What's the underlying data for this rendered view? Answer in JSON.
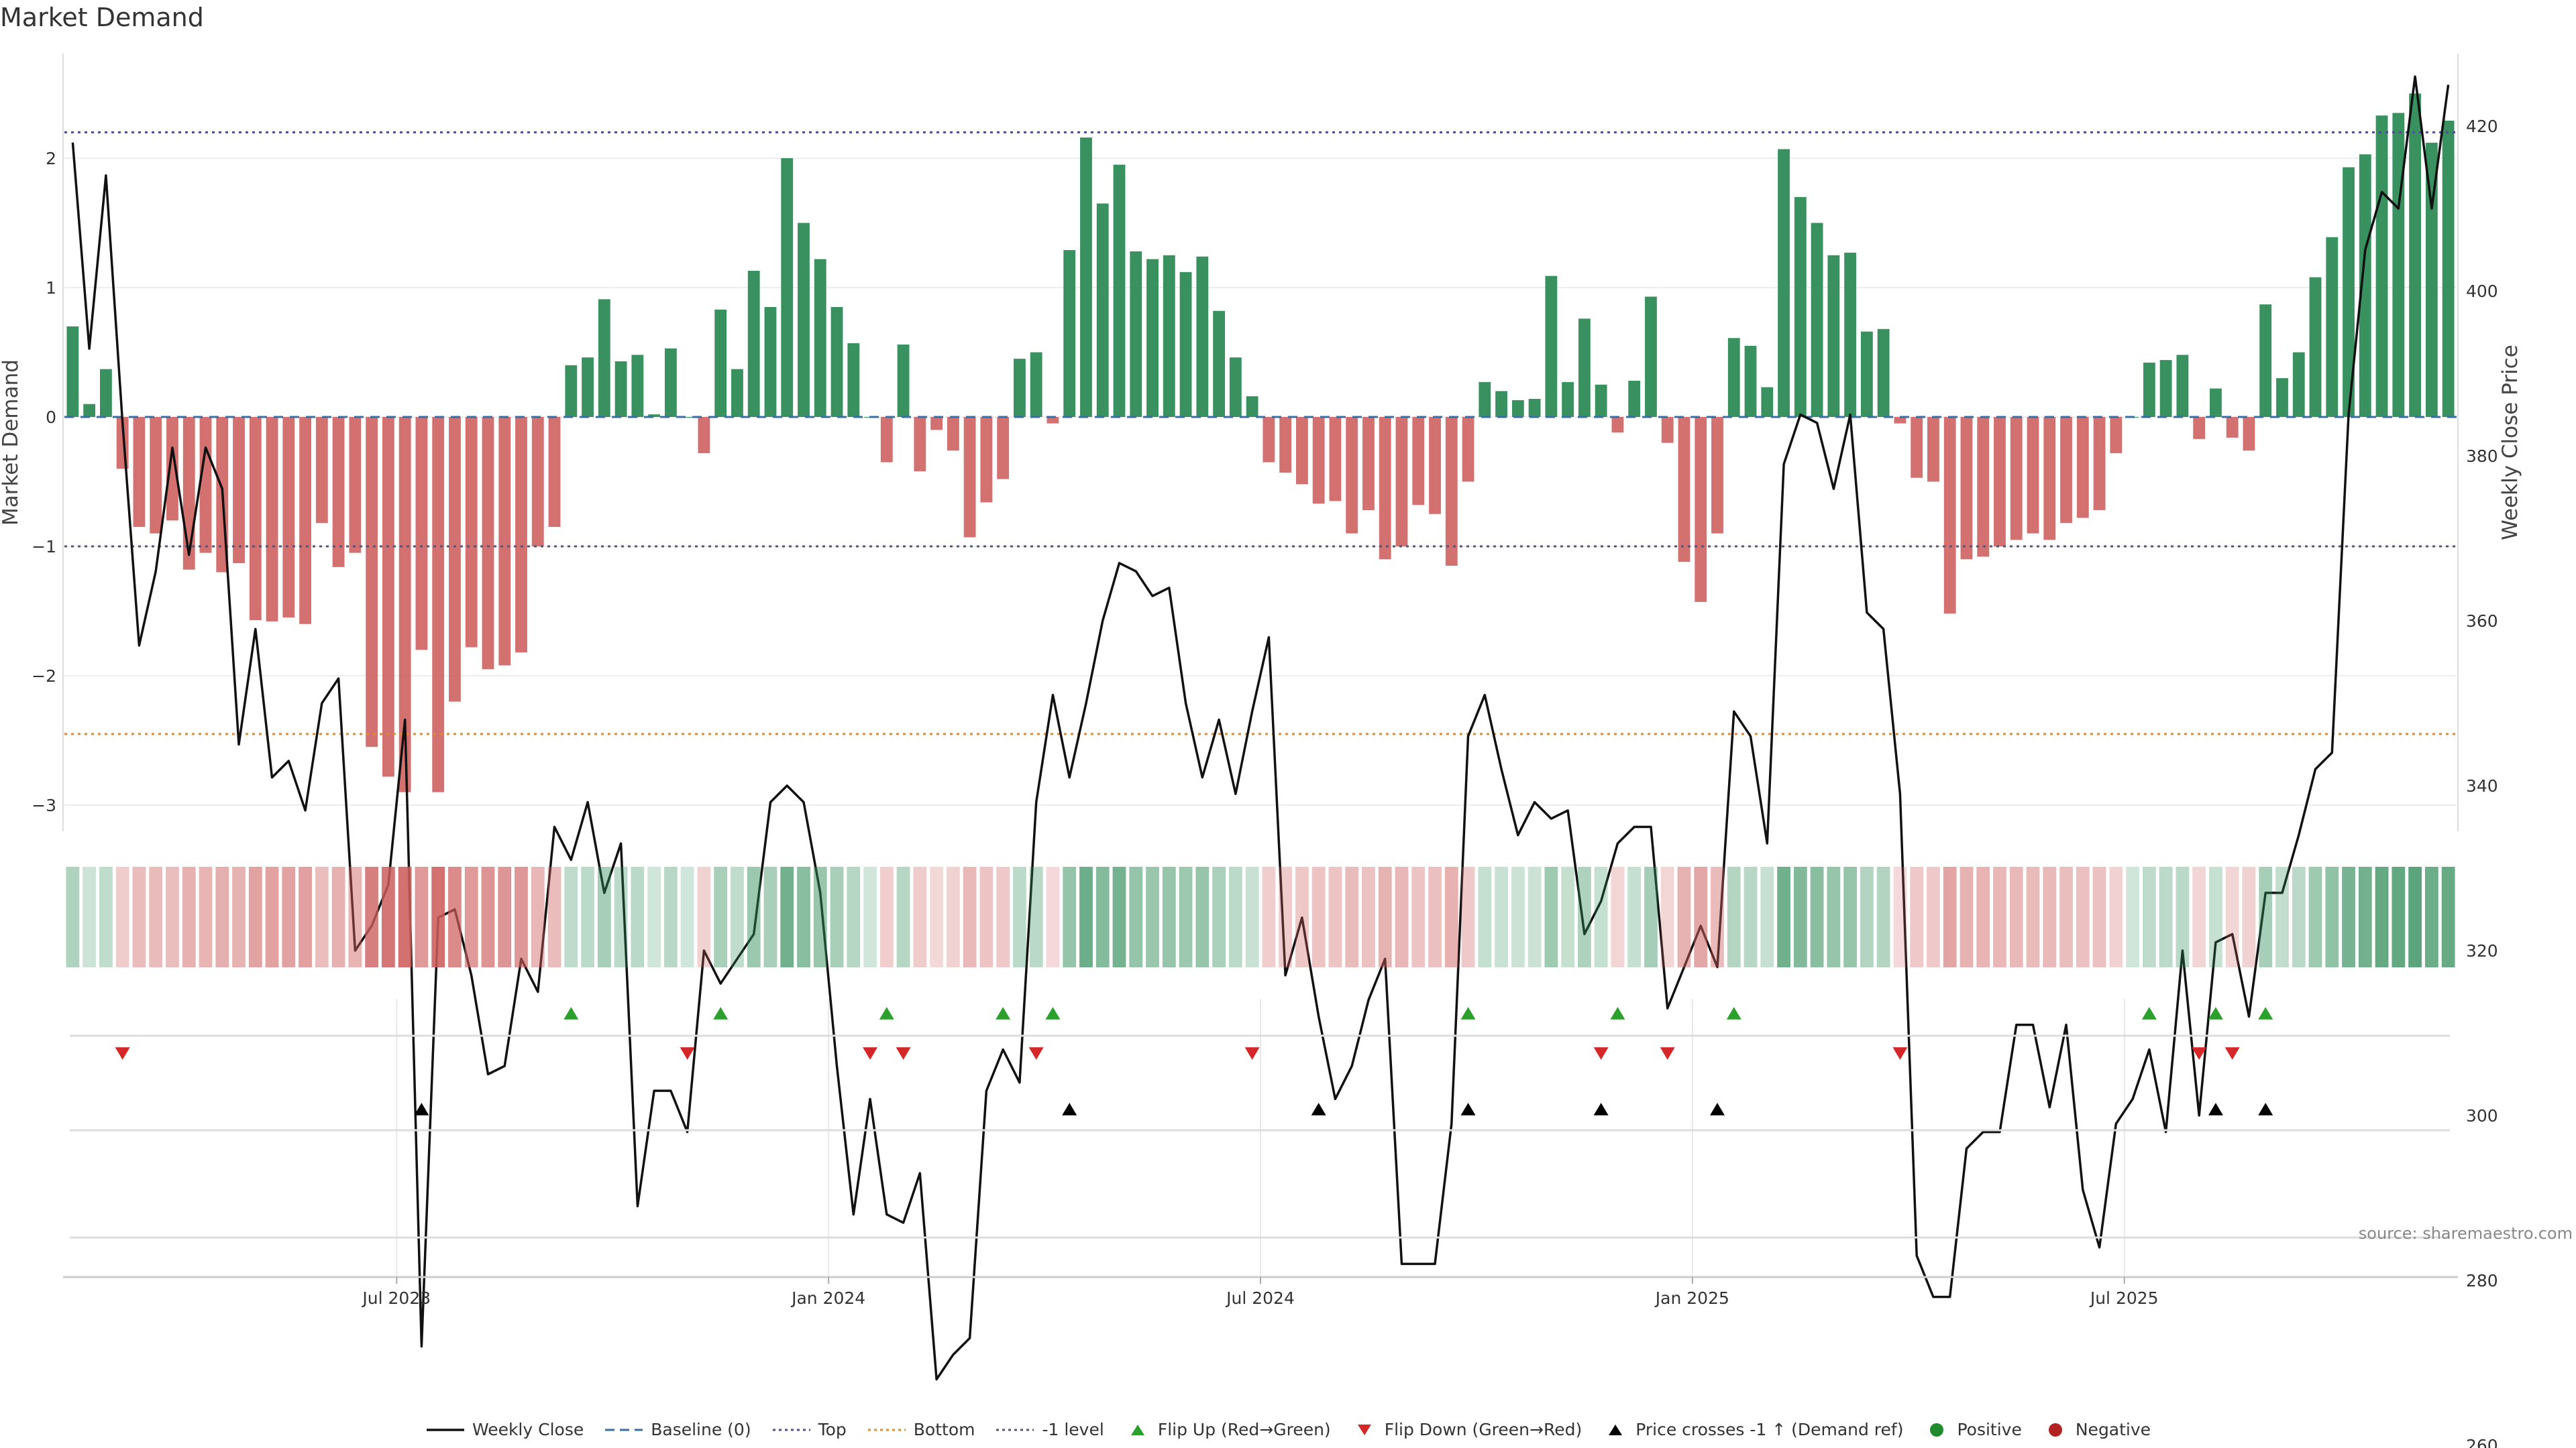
{
  "title": "Market Demand",
  "source": "source: sharemaestro.com",
  "legend": [
    {
      "key": "weekly_close",
      "label": "Weekly Close"
    },
    {
      "key": "baseline",
      "label": "Baseline (0)"
    },
    {
      "key": "top",
      "label": "Top"
    },
    {
      "key": "bottom",
      "label": "Bottom"
    },
    {
      "key": "minus1",
      "label": "-1 level"
    },
    {
      "key": "flip_up",
      "label": "Flip Up (Red→Green)"
    },
    {
      "key": "flip_down",
      "label": "Flip Down (Green→Red)"
    },
    {
      "key": "cross",
      "label": "Price crosses -1 ↑ (Demand ref)"
    },
    {
      "key": "positive",
      "label": "Positive"
    },
    {
      "key": "negative",
      "label": "Negative"
    }
  ],
  "colors": {
    "positive": "#2e8b57",
    "negative": "#cd5c5c",
    "close": "#111111",
    "baseline": "#3a6ea5",
    "top": "#4b4b8f",
    "bottom": "#e08a2c",
    "minus1": "#555577",
    "flip_up": "#2ca02c",
    "flip_down": "#d62728",
    "cross": "#000000",
    "pos_dot": "#1f8b2c",
    "neg_dot": "#b22222"
  },
  "chart_data": {
    "type": "bar+line",
    "ylabel_left": "Market Demand",
    "ylabel_right": "Weekly Close Price",
    "ylim_left": [
      -3.2,
      2.8
    ],
    "ylim_right": [
      252,
      432
    ],
    "yticks_left": [
      {
        "v": 2,
        "t": "2"
      },
      {
        "v": 1,
        "t": "1"
      },
      {
        "v": 0,
        "t": "0"
      },
      {
        "v": -1,
        "t": "−1"
      },
      {
        "v": -2,
        "t": "−2"
      },
      {
        "v": -3,
        "t": "−3"
      }
    ],
    "yticks_right": [
      {
        "v": 420,
        "t": "420"
      },
      {
        "v": 400,
        "t": "400"
      },
      {
        "v": 380,
        "t": "380"
      },
      {
        "v": 360,
        "t": "360"
      },
      {
        "v": 340,
        "t": "340"
      },
      {
        "v": 320,
        "t": "320"
      },
      {
        "v": 300,
        "t": "300"
      },
      {
        "v": 280,
        "t": "280"
      },
      {
        "v": 260,
        "t": "260"
      }
    ],
    "x_ticks": [
      {
        "i": 20,
        "label": "Jul 2023"
      },
      {
        "i": 46,
        "label": "Jan 2024"
      },
      {
        "i": 72,
        "label": "Jul 2024"
      },
      {
        "i": 98,
        "label": "Jan 2025"
      },
      {
        "i": 124,
        "label": "Jul 2025"
      }
    ],
    "top_level": 2.2,
    "bottom_level": -2.45,
    "minus1_level": -1,
    "demand": [
      0.7,
      0.1,
      0.37,
      -0.4,
      -0.85,
      -0.9,
      -0.8,
      -1.18,
      -1.05,
      -1.2,
      -1.13,
      -1.57,
      -1.58,
      -1.55,
      -1.6,
      -0.82,
      -1.16,
      -1.05,
      -2.55,
      -2.78,
      -2.9,
      -1.8,
      -2.9,
      -2.2,
      -1.78,
      -1.95,
      -1.92,
      -1.82,
      -1.0,
      -0.85,
      0.4,
      0.46,
      0.91,
      0.43,
      0.48,
      0.02,
      0.53,
      0.0,
      -0.28,
      0.83,
      0.37,
      1.13,
      0.85,
      2.0,
      1.5,
      1.22,
      0.85,
      0.57,
      0.0,
      -0.35,
      0.56,
      -0.42,
      -0.1,
      -0.26,
      -0.93,
      -0.66,
      -0.48,
      0.45,
      0.5,
      -0.05,
      1.29,
      2.16,
      1.65,
      1.95,
      1.28,
      1.22,
      1.25,
      1.12,
      1.24,
      0.82,
      0.46,
      0.16,
      -0.35,
      -0.43,
      -0.52,
      -0.67,
      -0.65,
      -0.9,
      -0.72,
      -1.1,
      -1.0,
      -0.68,
      -0.75,
      -1.15,
      -0.5,
      0.27,
      0.2,
      0.13,
      0.14,
      1.09,
      0.27,
      0.76,
      0.25,
      -0.12,
      0.28,
      0.93,
      -0.2,
      -1.12,
      -1.43,
      -0.9,
      0.61,
      0.55,
      0.23,
      2.07,
      1.7,
      1.5,
      1.25,
      1.27,
      0.66,
      0.68,
      -0.05,
      -0.47,
      -0.5,
      -1.52,
      -1.1,
      -1.08,
      -1.0,
      -0.95,
      -0.9,
      -0.95,
      -0.82,
      -0.78,
      -0.72,
      -0.28,
      0.0,
      0.42,
      0.44,
      0.48,
      -0.17,
      0.22,
      -0.16,
      -0.26,
      0.87,
      0.3,
      0.5,
      1.08,
      1.39,
      1.93,
      2.03,
      2.33,
      2.35,
      2.5,
      2.12,
      2.29
    ],
    "close": [
      418,
      393,
      414,
      384,
      357,
      366,
      381,
      368,
      381,
      376,
      345,
      359,
      341,
      343,
      337,
      350,
      353,
      320,
      323,
      328,
      348,
      272,
      324,
      325,
      317,
      305,
      306,
      319,
      315,
      335,
      331,
      338,
      327,
      333,
      289,
      303,
      303,
      298,
      320,
      316,
      319,
      322,
      338,
      340,
      338,
      327,
      306,
      288,
      302,
      288,
      287,
      293,
      268,
      271,
      273,
      303,
      308,
      304,
      338,
      351,
      341,
      350,
      360,
      367,
      366,
      363,
      364,
      350,
      341,
      348,
      339,
      349,
      358,
      317,
      324,
      312,
      302,
      306,
      314,
      319,
      282,
      282,
      282,
      299,
      346,
      351,
      342,
      334,
      338,
      336,
      337,
      322,
      326,
      333,
      335,
      335,
      313,
      318,
      323,
      318,
      349,
      346,
      333,
      379,
      385,
      384,
      376,
      385,
      361,
      359,
      339,
      283,
      278,
      278,
      296,
      298,
      298,
      311,
      311,
      301,
      311,
      291,
      284,
      299,
      302,
      308,
      298,
      320,
      300,
      321,
      322,
      312,
      327,
      327,
      334,
      342,
      344,
      385,
      405,
      412,
      410,
      426,
      410,
      425
    ],
    "flip_up": [
      30,
      39,
      49,
      56,
      59,
      84,
      93,
      100,
      125,
      129,
      132
    ],
    "flip_down": [
      3,
      37,
      48,
      50,
      58,
      71,
      92,
      96,
      110,
      128,
      130
    ],
    "price_cross": [
      21,
      60,
      75,
      84,
      92,
      99,
      129,
      132
    ]
  }
}
